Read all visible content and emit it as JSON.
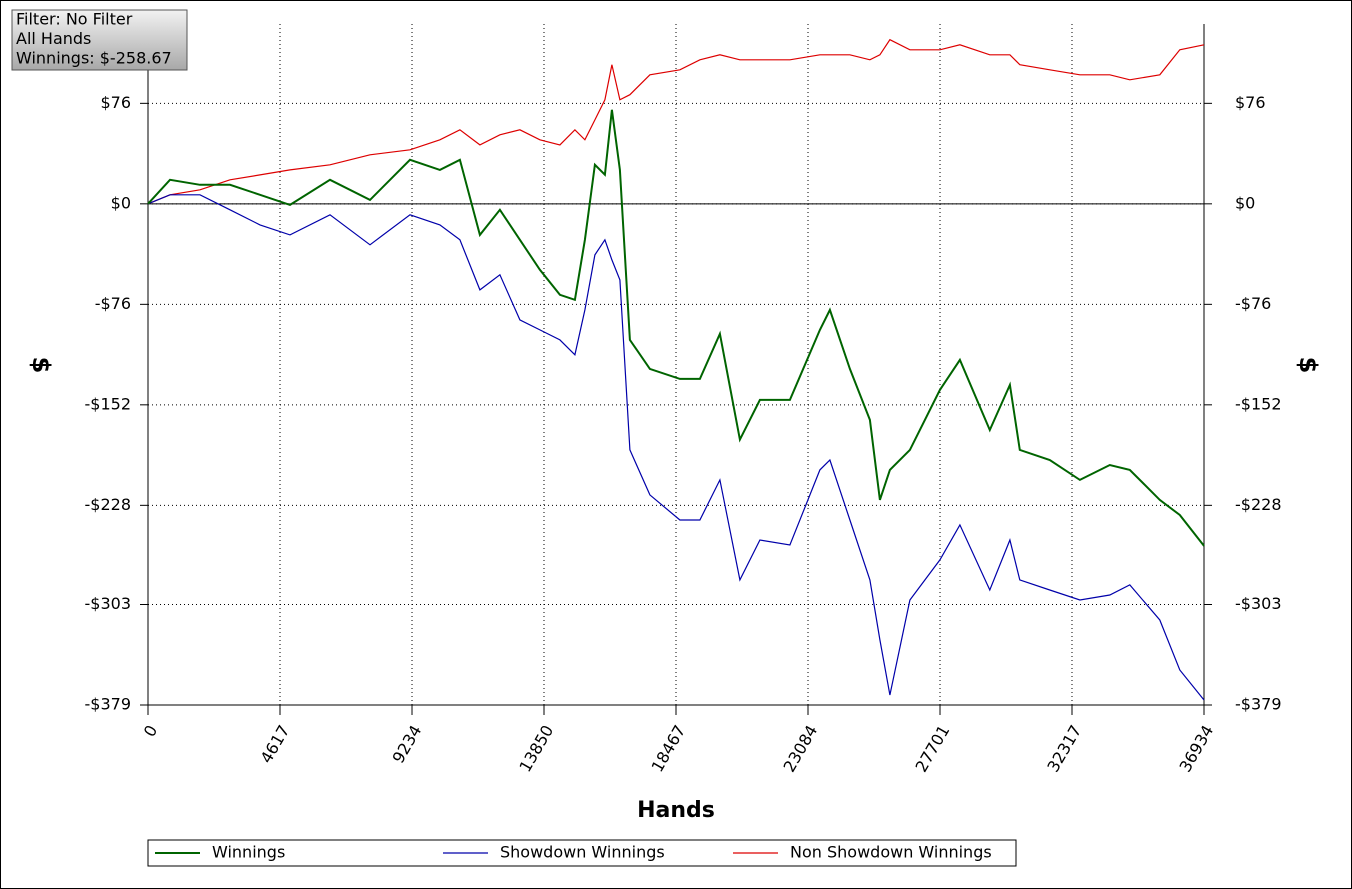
{
  "chart_data": {
    "type": "line",
    "xlabel": "Hands",
    "ylabel": "$",
    "annotations": [
      "Filter: No Filter",
      "All Hands",
      "Winnings: $-258.67"
    ],
    "x": [
      0,
      769,
      1818,
      2867,
      3916,
      4966,
      6364,
      7763,
      9162,
      10211,
      10910,
      11610,
      12309,
      13008,
      13708,
      14407,
      14932,
      15281,
      15631,
      15981,
      16226,
      16505,
      16855,
      17555,
      18604,
      19303,
      20003,
      20702,
      21401,
      22450,
      23499,
      23849,
      24549,
      25248,
      25598,
      25948,
      26647,
      27696,
      28395,
      29444,
      30144,
      30493,
      31542,
      32592,
      33641,
      34340,
      35389,
      36089,
      36934
    ],
    "series": [
      {
        "name": "Winnings",
        "color": "#006400",
        "values": [
          0,
          18.2,
          14.4,
          14.4,
          6.8,
          -0.8,
          18.2,
          3.0,
          33.3,
          25.7,
          33.3,
          -23.5,
          -4.5,
          -27.2,
          -49.9,
          -68.8,
          -72.6,
          -27.2,
          29.5,
          22.0,
          71.1,
          25.7,
          -102.9,
          -124.8,
          -132.4,
          -132.4,
          -98.3,
          -178.3,
          -148.3,
          -148.3,
          -95.3,
          -80.2,
          -124.8,
          -163.4,
          -223.9,
          -201.2,
          -186.1,
          -140.7,
          -118.0,
          -171.0,
          -136.9,
          -186.1,
          -193.7,
          -208.8,
          -197.5,
          -201.2,
          -223.9,
          -235.3,
          -258.67
        ]
      },
      {
        "name": "Showdown Winnings",
        "color": "#0000aa",
        "values": [
          0,
          6.8,
          6.8,
          -4.5,
          -15.9,
          -23.5,
          -8.3,
          -31.0,
          -8.3,
          -15.9,
          -27.2,
          -65.1,
          -53.7,
          -87.8,
          -95.3,
          -102.9,
          -114.2,
          -80.2,
          -38.6,
          -27.2,
          -42.4,
          -57.5,
          -186.1,
          -220.1,
          -239.1,
          -239.1,
          -208.8,
          -284.4,
          -254.2,
          -258.0,
          -201.2,
          -193.7,
          -239.1,
          -284.4,
          -329.8,
          -371.4,
          -299.6,
          -269.3,
          -242.8,
          -292.0,
          -254.2,
          -284.4,
          -292.0,
          -299.6,
          -295.8,
          -288.2,
          -314.7,
          -352.5,
          -375.2
        ]
      },
      {
        "name": "Non Showdown Winnings",
        "color": "#dd0000",
        "values": [
          0,
          6.8,
          10.6,
          18.2,
          21.9,
          25.7,
          29.5,
          37.1,
          40.9,
          48.4,
          56.0,
          44.6,
          52.2,
          56.0,
          48.4,
          44.6,
          56.0,
          48.4,
          63.5,
          78.7,
          105.2,
          78.7,
          82.5,
          97.6,
          101.4,
          108.9,
          112.7,
          108.9,
          108.9,
          108.9,
          112.7,
          112.7,
          112.7,
          108.9,
          112.7,
          124.1,
          116.5,
          116.5,
          120.3,
          112.7,
          112.7,
          105.2,
          101.4,
          97.6,
          97.6,
          93.8,
          97.6,
          116.5,
          120.3
        ]
      }
    ],
    "xlim": [
      0,
      36934
    ],
    "xticks": [
      0,
      4617,
      9234,
      13850,
      18467,
      23084,
      27701,
      32317,
      36934
    ],
    "ylim": [
      -379,
      136
    ],
    "yticks": [
      {
        "value": 76,
        "label": "$76"
      },
      {
        "value": 0,
        "label": "$0"
      },
      {
        "value": -76,
        "label": "-$76"
      },
      {
        "value": -152,
        "label": "-$152"
      },
      {
        "value": -228,
        "label": "-$228"
      },
      {
        "value": -303,
        "label": "-$303"
      },
      {
        "value": -379,
        "label": "-$379"
      }
    ],
    "grid": true,
    "legend": "bottom"
  }
}
